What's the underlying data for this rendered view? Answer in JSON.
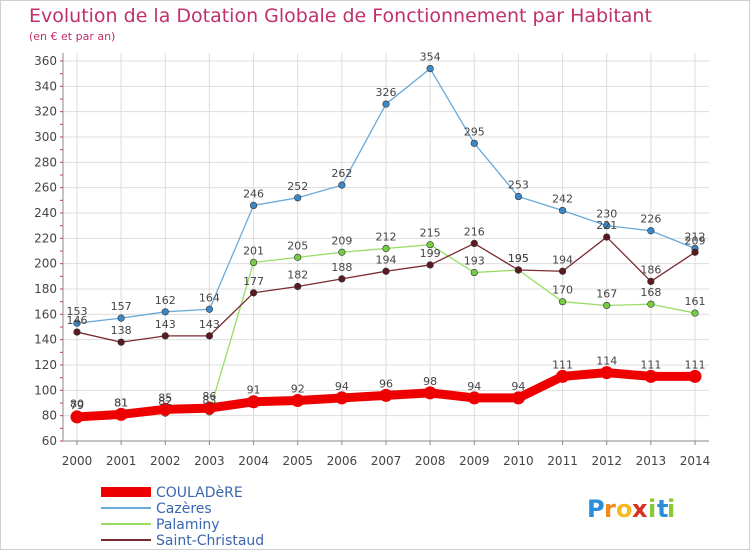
{
  "chart_data": {
    "type": "line",
    "title": "Evolution de la Dotation Globale de Fonctionnement par Habitant",
    "subtitle": "(en € et par an)",
    "xlabel": "",
    "ylabel": "",
    "x": [
      2000,
      2001,
      2002,
      2003,
      2004,
      2005,
      2006,
      2007,
      2008,
      2009,
      2010,
      2011,
      2012,
      2013,
      2014
    ],
    "x_tick_labels": [
      "2000",
      "2001",
      "2002",
      "2003",
      "2004",
      "2005",
      "2006",
      "2007",
      "2008",
      "2009",
      "2010",
      "2011",
      "2012",
      "2013",
      "2014"
    ],
    "ylim": [
      60,
      360
    ],
    "y_ticks": [
      60,
      80,
      100,
      120,
      140,
      160,
      180,
      200,
      220,
      240,
      260,
      280,
      300,
      320,
      340,
      360
    ],
    "grid": true,
    "legend_position": "bottom-left",
    "series": [
      {
        "name": "COULADèRE",
        "color": "#ee0000",
        "emphasis": true,
        "values": [
          79,
          81,
          85,
          86,
          91,
          92,
          94,
          96,
          98,
          94,
          94,
          111,
          114,
          111,
          111
        ],
        "labels": [
          "79",
          "81",
          "85",
          "86",
          "91",
          "92",
          "94",
          "96",
          "98",
          "94",
          "94",
          "111",
          "114",
          "111",
          "111"
        ]
      },
      {
        "name": "Cazères",
        "color": "#6aaad8",
        "marker_color": "#3a88c8",
        "values": [
          153,
          157,
          162,
          164,
          246,
          252,
          262,
          326,
          354,
          295,
          253,
          242,
          230,
          226,
          212
        ],
        "labels": [
          "153",
          "157",
          "162",
          "164",
          "246",
          "252",
          "262",
          "326",
          "354",
          "295",
          "253",
          "242",
          "230",
          "226",
          "212"
        ]
      },
      {
        "name": "Palaminy",
        "color": "#99dd66",
        "marker_color": "#77cc44",
        "values": [
          80,
          81,
          82,
          83,
          201,
          205,
          209,
          212,
          215,
          193,
          195,
          170,
          167,
          168,
          161
        ],
        "labels": [
          "80",
          "81",
          "82",
          "83",
          "201",
          "205",
          "209",
          "212",
          "215",
          "193",
          "195",
          "170",
          "167",
          "168",
          "161"
        ]
      },
      {
        "name": "Saint-Christaud",
        "color": "#7a2a30",
        "marker_color": "#5a1a20",
        "values": [
          146,
          138,
          143,
          143,
          177,
          182,
          188,
          194,
          199,
          216,
          195,
          194,
          221,
          186,
          209
        ],
        "labels": [
          "146",
          "138",
          "143",
          "143",
          "177",
          "182",
          "188",
          "194",
          "199",
          "216",
          "195",
          "194",
          "221",
          "186",
          "209"
        ]
      }
    ]
  },
  "logo": {
    "text": "Proxiti",
    "letters": [
      "P",
      "r",
      "o",
      "x",
      "i",
      "t",
      "i"
    ],
    "colors": [
      "#2a8fd8",
      "#f08a1c",
      "#f4b820",
      "#d83020",
      "#8ac83a",
      "#2a8fd8",
      "#8ac83a"
    ]
  }
}
